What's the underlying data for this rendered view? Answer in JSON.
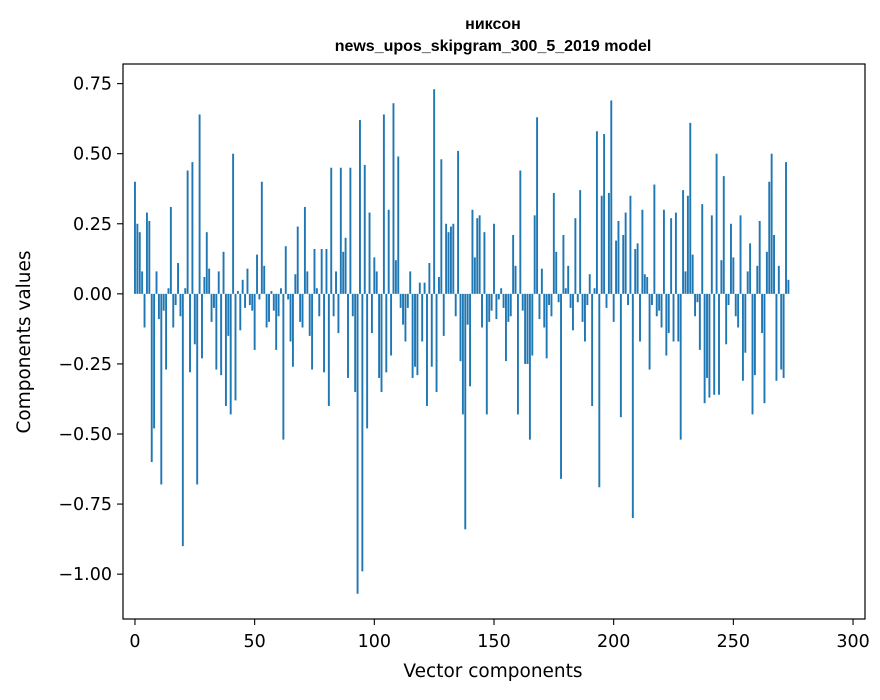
{
  "chart_data": {
    "type": "bar",
    "title_line1": "никсон",
    "title_line2": "news_upos_skipgram_300_5_2019 model",
    "xlabel": "Vector components",
    "ylabel": "Components values",
    "xlim": [
      -5,
      305
    ],
    "ylim": [
      -1.16,
      0.82
    ],
    "xticks": [
      0,
      50,
      100,
      150,
      200,
      250,
      300
    ],
    "xtick_labels": [
      "0",
      "50",
      "100",
      "150",
      "200",
      "250",
      "300"
    ],
    "yticks": [
      -1.0,
      -0.75,
      -0.5,
      -0.25,
      0.0,
      0.25,
      0.5,
      0.75
    ],
    "ytick_labels": [
      "−1.00",
      "−0.75",
      "−0.50",
      "−0.25",
      "0.00",
      "0.25",
      "0.50",
      "0.75"
    ],
    "bar_color": "#1f77b4",
    "values": [
      0.4,
      0.25,
      0.22,
      0.08,
      -0.12,
      0.29,
      0.26,
      -0.6,
      -0.48,
      0.08,
      -0.09,
      -0.68,
      -0.06,
      -0.27,
      0.02,
      0.31,
      -0.12,
      -0.04,
      0.11,
      -0.08,
      -0.9,
      0.02,
      0.44,
      -0.28,
      0.47,
      -0.18,
      -0.68,
      0.64,
      -0.23,
      0.06,
      0.22,
      0.09,
      -0.1,
      -0.05,
      -0.27,
      0.08,
      -0.29,
      0.15,
      -0.4,
      -0.15,
      -0.43,
      0.5,
      -0.38,
      0.01,
      -0.13,
      0.05,
      -0.05,
      0.09,
      -0.04,
      -0.06,
      -0.2,
      0.14,
      -0.02,
      0.4,
      0.1,
      -0.12,
      -0.1,
      0.01,
      -0.06,
      -0.2,
      -0.08,
      0.02,
      -0.52,
      0.17,
      -0.02,
      -0.17,
      -0.26,
      0.07,
      0.24,
      -0.1,
      -0.12,
      0.31,
      0.08,
      -0.15,
      -0.27,
      0.16,
      0.02,
      -0.08,
      0.16,
      -0.28,
      0.16,
      -0.4,
      0.45,
      -0.08,
      0.08,
      -0.14,
      0.45,
      0.15,
      0.2,
      -0.3,
      0.45,
      -0.08,
      -0.35,
      -1.07,
      0.62,
      -0.99,
      0.46,
      -0.48,
      0.29,
      -0.14,
      0.13,
      0.08,
      -0.3,
      -0.35,
      0.64,
      -0.28,
      0.3,
      -0.22,
      0.68,
      0.12,
      0.49,
      -0.05,
      -0.11,
      -0.17,
      -0.05,
      0.08,
      -0.3,
      -0.26,
      -0.29,
      0.04,
      -0.17,
      0.04,
      -0.4,
      0.11,
      -0.26,
      0.73,
      -0.35,
      0.06,
      0.48,
      -0.15,
      0.25,
      0.22,
      0.24,
      0.25,
      -0.08,
      0.51,
      -0.24,
      -0.43,
      -0.84,
      -0.11,
      -0.33,
      0.3,
      0.13,
      0.27,
      0.28,
      -0.12,
      0.22,
      -0.43,
      -0.1,
      -0.06,
      0.25,
      -0.09,
      -0.02,
      0.02,
      -0.05,
      -0.24,
      -0.1,
      -0.08,
      0.21,
      0.1,
      -0.43,
      0.44,
      -0.06,
      -0.25,
      -0.25,
      -0.52,
      -0.22,
      0.28,
      0.63,
      -0.09,
      0.09,
      -0.12,
      -0.23,
      -0.04,
      -0.08,
      0.36,
      0.15,
      -0.03,
      -0.66,
      0.21,
      0.02,
      0.1,
      -0.05,
      -0.13,
      0.27,
      -0.03,
      0.37,
      -0.1,
      -0.17,
      -0.04,
      0.07,
      -0.4,
      0.02,
      0.58,
      -0.69,
      0.35,
      0.57,
      -0.05,
      0.36,
      0.69,
      -0.1,
      0.19,
      0.26,
      -0.44,
      0.21,
      0.29,
      -0.04,
      0.35,
      -0.8,
      0.16,
      0.18,
      -0.17,
      0.3,
      0.07,
      0.06,
      -0.27,
      -0.04,
      0.39,
      -0.08,
      -0.06,
      -0.12,
      0.3,
      -0.22,
      -0.14,
      0.27,
      -0.17,
      0.29,
      -0.17,
      -0.52,
      0.37,
      0.08,
      0.35,
      0.61,
      0.14,
      -0.08,
      -0.03,
      -0.2,
      0.32,
      -0.39,
      -0.3,
      -0.37,
      0.28,
      -0.36,
      0.5,
      -0.36,
      0.12,
      0.42,
      -0.18,
      -0.04,
      0.25,
      0.13,
      -0.08,
      -0.12,
      0.28,
      -0.31,
      -0.21,
      0.08,
      0.18,
      -0.43,
      -0.29,
      0.1,
      0.26,
      -0.14,
      -0.39,
      0.15,
      0.4,
      0.5,
      0.21,
      -0.31,
      0.1,
      -0.27,
      -0.3,
      0.47,
      0.05
    ]
  }
}
